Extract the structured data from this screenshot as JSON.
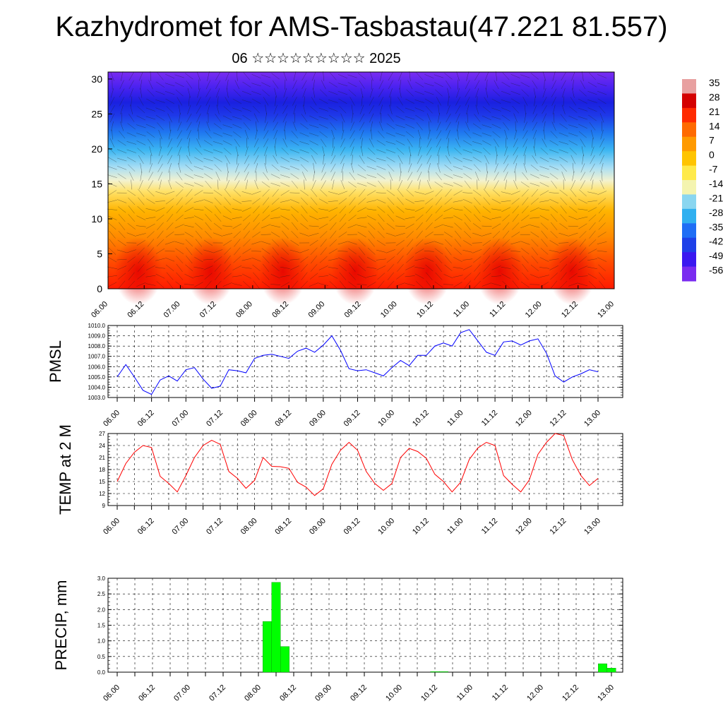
{
  "title": "Kazhydromet for AMS-Tasbastau(47.221 81.557)",
  "subtitle": "06 ☆☆☆☆☆☆☆☆☆ 2025",
  "chart_data": [
    {
      "type": "heatmap",
      "ylabel": "",
      "ylim": [
        0,
        31
      ],
      "yticks": [
        0,
        5,
        10,
        15,
        20,
        25,
        30
      ],
      "x_tick_labels": [
        "06.00",
        "06.12",
        "07.00",
        "07.12",
        "08.00",
        "08.12",
        "09.00",
        "09.12",
        "10.00",
        "10.12",
        "11.00",
        "11.12",
        "12.00",
        "12.12",
        "13.00"
      ],
      "colorbar": {
        "labels": [
          "35",
          "28",
          "21",
          "14",
          "7",
          "0",
          "-7",
          "-14",
          "-21",
          "-28",
          "-35",
          "-42",
          "-49",
          "-56"
        ],
        "colors": [
          "#e8a0a0",
          "#d40000",
          "#ff2a00",
          "#ff6a00",
          "#ff9a00",
          "#ffc400",
          "#ffea4a",
          "#f4f4b0",
          "#8ad6f0",
          "#30b0f0",
          "#1f6ef5",
          "#1e40e8",
          "#3a18f0",
          "#7a2cf0"
        ]
      }
    },
    {
      "type": "line",
      "ylabel": "PMSL",
      "ylim": [
        1003.0,
        1010.0
      ],
      "yticks": [
        "1003.0",
        "1004.0",
        "1005.0",
        "1006.0",
        "1007.0",
        "1008.0",
        "1009.0",
        "1010.0"
      ],
      "x_tick_labels": [
        "06.00",
        "06.12",
        "07.00",
        "07.12",
        "08.00",
        "08.12",
        "09.00",
        "09.12",
        "10.00",
        "10.12",
        "11.00",
        "11.12",
        "12.00",
        "12.12",
        "13.00"
      ],
      "series": [
        {
          "color": "#0000ff",
          "step_hours": 3,
          "values": [
            1005.0,
            1006.2,
            1005.0,
            1003.7,
            1003.3,
            1004.7,
            1005.1,
            1004.6,
            1005.7,
            1005.9,
            1004.8,
            1003.9,
            1004.1,
            1005.7,
            1005.6,
            1005.4,
            1006.8,
            1007.1,
            1007.2,
            1007.0,
            1006.8,
            1007.5,
            1007.8,
            1007.4,
            1008.1,
            1009.0,
            1007.6,
            1005.8,
            1005.6,
            1005.7,
            1005.4,
            1005.1,
            1005.9,
            1006.6,
            1006.1,
            1007.1,
            1007.1,
            1008.0,
            1008.3,
            1008.0,
            1009.3,
            1009.6,
            1008.5,
            1007.4,
            1007.1,
            1008.4,
            1008.5,
            1008.1,
            1008.5,
            1008.7,
            1007.3,
            1005.1,
            1004.5,
            1005.0,
            1005.3,
            1005.7,
            1005.5
          ]
        }
      ]
    },
    {
      "type": "line",
      "ylabel": "TEMP at 2 M",
      "ylim": [
        9,
        27
      ],
      "yticks": [
        "9",
        "12",
        "15",
        "18",
        "21",
        "24",
        "27"
      ],
      "x_tick_labels": [
        "06.00",
        "06.12",
        "07.00",
        "07.12",
        "08.00",
        "08.12",
        "09.00",
        "09.12",
        "10.00",
        "10.12",
        "11.00",
        "11.12",
        "12.00",
        "12.12",
        "13.00"
      ],
      "series": [
        {
          "color": "#ff0000",
          "step_hours": 3,
          "values": [
            15.0,
            19.5,
            22.3,
            24.0,
            23.5,
            16.3,
            14.5,
            12.4,
            16.5,
            21.0,
            24.0,
            25.3,
            24.3,
            17.5,
            15.8,
            13.3,
            15.3,
            21.0,
            18.8,
            18.7,
            18.3,
            14.8,
            13.6,
            11.5,
            13.2,
            19.3,
            22.8,
            24.8,
            22.8,
            17.5,
            14.5,
            12.8,
            14.5,
            21.0,
            23.3,
            22.5,
            20.8,
            16.8,
            15.0,
            12.4,
            14.8,
            20.5,
            23.4,
            24.8,
            24.0,
            16.5,
            14.3,
            12.4,
            15.4,
            21.8,
            24.8,
            27.0,
            26.5,
            20.5,
            16.5,
            14.0,
            15.8
          ]
        }
      ]
    },
    {
      "type": "bar",
      "ylabel": "PRECIP, mm",
      "ylim": [
        0,
        3.0
      ],
      "yticks": [
        "0.0",
        "0.5",
        "1.0",
        "1.5",
        "2.0",
        "2.5",
        "3.0"
      ],
      "x_tick_labels": [
        "06.00",
        "06.12",
        "07.00",
        "07.12",
        "08.00",
        "08.12",
        "09.00",
        "09.12",
        "10.00",
        "10.12",
        "11.00",
        "11.12",
        "12.00",
        "12.12",
        "13.00"
      ],
      "bars": [
        {
          "time_hours": 51,
          "value": 1.62
        },
        {
          "time_hours": 54,
          "value": 2.87
        },
        {
          "time_hours": 57,
          "value": 0.82
        },
        {
          "time_hours": 108,
          "value": 0.02
        },
        {
          "time_hours": 111,
          "value": 0.02
        },
        {
          "time_hours": 165,
          "value": 0.27
        },
        {
          "time_hours": 168,
          "value": 0.13
        }
      ],
      "color": "#00ff00"
    }
  ]
}
